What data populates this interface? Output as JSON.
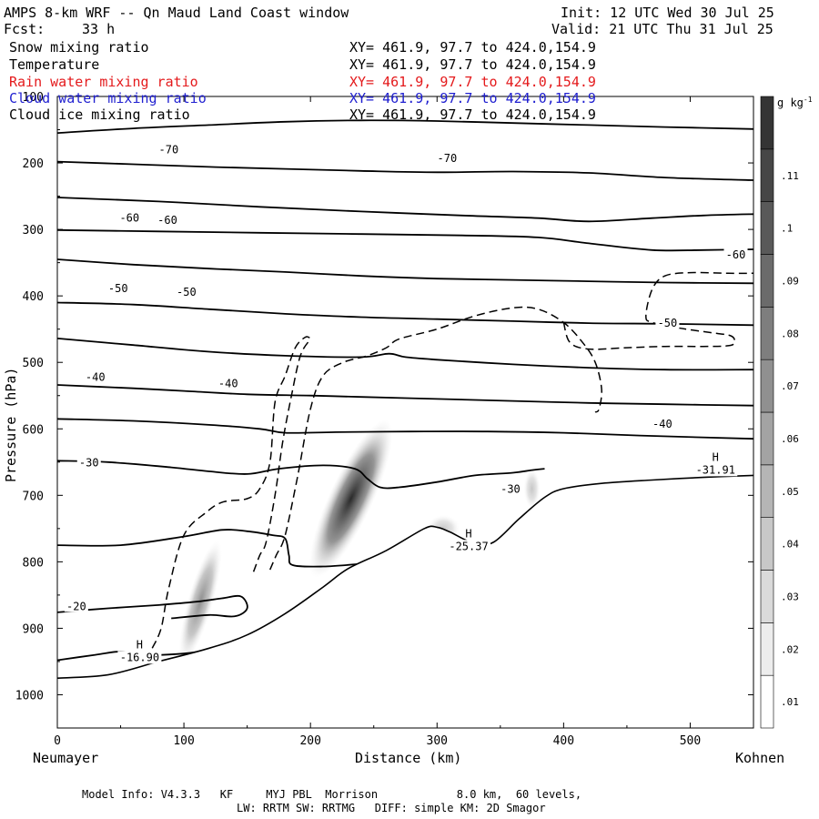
{
  "header": {
    "title": "AMPS 8-km WRF -- Qn Maud Land Coast window",
    "init": "Init: 12 UTC Wed 30 Jul 25",
    "fcst_label": "Fcst:",
    "fcst_value": "33 h",
    "valid": "Valid: 21 UTC Thu 31 Jul 25"
  },
  "legend": [
    {
      "name": "Snow mixing ratio",
      "xy": "XY= 461.9, 97.7 to 424.0,154.9",
      "color": "#000000"
    },
    {
      "name": "Temperature",
      "xy": "XY= 461.9, 97.7 to 424.0,154.9",
      "color": "#000000"
    },
    {
      "name": "Rain water mixing ratio",
      "xy": "XY= 461.9, 97.7 to 424.0,154.9",
      "color": "#e41a1c"
    },
    {
      "name": "Cloud water mixing ratio",
      "xy": "XY= 461.9, 97.7 to 424.0,154.9",
      "color": "#1f1fd0"
    },
    {
      "name": "Cloud ice mixing ratio",
      "xy": "XY= 461.9, 97.7 to 424.0,154.9",
      "color": "#000000"
    }
  ],
  "footer": {
    "line1": "Model Info: V4.3.3   KF     MYJ PBL  Morrison            8.0 km,  60 levels,",
    "line2": "LW: RRTM SW: RRTMG   DIFF: simple KM: 2D Smagor"
  },
  "chart_data": {
    "type": "contour",
    "xlabel": "Distance (km)",
    "ylabel": "Pressure (hPa)",
    "x_left_label": "Neumayer",
    "x_right_label": "Kohnen",
    "xlim": [
      0,
      550
    ],
    "ylim": [
      1050,
      100
    ],
    "x_ticks": [
      0,
      100,
      200,
      300,
      400,
      500
    ],
    "y_ticks": [
      100,
      200,
      300,
      400,
      500,
      600,
      700,
      800,
      900,
      1000
    ],
    "colorbar": {
      "unit": "g kg",
      "unit_exp": "-1",
      "ticks": [
        ".01",
        ".02",
        ".03",
        ".04",
        ".05",
        ".06",
        ".07",
        ".08",
        ".09",
        ".1",
        ".11"
      ]
    },
    "temperature_isotherms": [
      {
        "value": -70,
        "points": [
          [
            0,
            155
          ],
          [
            60,
            148
          ],
          [
            120,
            143
          ],
          [
            180,
            138
          ],
          [
            240,
            136
          ],
          [
            300,
            137
          ],
          [
            360,
            140
          ],
          [
            420,
            143
          ],
          [
            480,
            146
          ],
          [
            550,
            149
          ]
        ]
      },
      {
        "value": -70,
        "points": [
          [
            0,
            198
          ],
          [
            60,
            202
          ],
          [
            120,
            206
          ],
          [
            180,
            209
          ],
          [
            240,
            212
          ],
          [
            300,
            214
          ],
          [
            360,
            213
          ],
          [
            420,
            215
          ],
          [
            480,
            222
          ],
          [
            550,
            226
          ]
        ]
      },
      {
        "value": -70,
        "points": [
          [
            0,
            252
          ],
          [
            80,
            258
          ],
          [
            160,
            266
          ],
          [
            240,
            273
          ],
          [
            320,
            279
          ],
          [
            380,
            283
          ],
          [
            420,
            288
          ],
          [
            470,
            283
          ],
          [
            510,
            279
          ],
          [
            550,
            277
          ]
        ]
      },
      {
        "value": -60,
        "points": [
          [
            0,
            301
          ],
          [
            80,
            303
          ],
          [
            160,
            305
          ],
          [
            240,
            307
          ],
          [
            320,
            309
          ],
          [
            380,
            312
          ],
          [
            420,
            321
          ],
          [
            470,
            331
          ],
          [
            510,
            331
          ],
          [
            550,
            330
          ]
        ]
      },
      {
        "value": -60,
        "points": [
          [
            0,
            345
          ],
          [
            60,
            353
          ],
          [
            120,
            359
          ],
          [
            180,
            364
          ],
          [
            240,
            370
          ],
          [
            300,
            374
          ],
          [
            360,
            376
          ],
          [
            420,
            378
          ],
          [
            480,
            380
          ],
          [
            550,
            381
          ]
        ]
      },
      {
        "value": -50,
        "points": [
          [
            0,
            410
          ],
          [
            60,
            413
          ],
          [
            120,
            420
          ],
          [
            180,
            427
          ],
          [
            240,
            432
          ],
          [
            300,
            435
          ],
          [
            360,
            438
          ],
          [
            420,
            441
          ],
          [
            480,
            442
          ],
          [
            550,
            444
          ]
        ]
      },
      {
        "value": -40,
        "points": [
          [
            0,
            464
          ],
          [
            60,
            474
          ],
          [
            120,
            484
          ],
          [
            180,
            490
          ],
          [
            240,
            492
          ],
          [
            262,
            487
          ],
          [
            275,
            492
          ],
          [
            300,
            496
          ],
          [
            360,
            503
          ],
          [
            420,
            508
          ],
          [
            480,
            511
          ],
          [
            550,
            511
          ]
        ]
      },
      {
        "value": -40,
        "points": [
          [
            0,
            534
          ],
          [
            60,
            539
          ],
          [
            100,
            543
          ],
          [
            150,
            548
          ],
          [
            200,
            550
          ],
          [
            240,
            552
          ],
          [
            300,
            555
          ],
          [
            360,
            558
          ],
          [
            420,
            561
          ],
          [
            480,
            563
          ],
          [
            550,
            565
          ]
        ]
      },
      {
        "value": -30,
        "points": [
          [
            0,
            585
          ],
          [
            60,
            588
          ],
          [
            120,
            594
          ],
          [
            160,
            600
          ],
          [
            180,
            606
          ],
          [
            220,
            605
          ],
          [
            280,
            604
          ],
          [
            340,
            604
          ],
          [
            400,
            606
          ],
          [
            460,
            610
          ],
          [
            550,
            615
          ]
        ]
      },
      {
        "value": -30,
        "points": [
          [
            0,
            648
          ],
          [
            40,
            650
          ],
          [
            90,
            658
          ],
          [
            120,
            664
          ],
          [
            150,
            668
          ],
          [
            175,
            660
          ],
          [
            210,
            655
          ],
          [
            235,
            660
          ],
          [
            245,
            675
          ],
          [
            255,
            688
          ],
          [
            270,
            688
          ],
          [
            300,
            680
          ],
          [
            330,
            670
          ],
          [
            360,
            666
          ],
          [
            375,
            662
          ],
          [
            385,
            660
          ]
        ]
      },
      {
        "value": -20,
        "points": [
          [
            0,
            775
          ],
          [
            50,
            775
          ],
          [
            100,
            762
          ],
          [
            130,
            752
          ],
          [
            150,
            754
          ],
          [
            170,
            760
          ],
          [
            180,
            765
          ],
          [
            183,
            790
          ],
          [
            186,
            805
          ],
          [
            210,
            807
          ],
          [
            240,
            803
          ],
          [
            270,
            797
          ],
          [
            280,
            790
          ]
        ]
      },
      {
        "value": -20,
        "points": [
          [
            0,
            876
          ],
          [
            40,
            870
          ],
          [
            80,
            865
          ],
          [
            110,
            860
          ],
          [
            130,
            855
          ],
          [
            145,
            852
          ],
          [
            150,
            870
          ],
          [
            140,
            882
          ],
          [
            120,
            880
          ],
          [
            90,
            885
          ]
        ]
      },
      {
        "value": -20,
        "points": [
          [
            0,
            948
          ],
          [
            30,
            940
          ],
          [
            50,
            935
          ],
          [
            70,
            940
          ],
          [
            100,
            938
          ],
          [
            120,
            932
          ],
          [
            140,
            920
          ]
        ]
      }
    ],
    "isotherm_labels": [
      {
        "text": "-70",
        "x": 88,
        "p": 180
      },
      {
        "text": "-70",
        "x": 308,
        "p": 193
      },
      {
        "text": "-60",
        "x": 57,
        "p": 283
      },
      {
        "text": "-60",
        "x": 87,
        "p": 286
      },
      {
        "text": "-60",
        "x": 536,
        "p": 338
      },
      {
        "text": "-50",
        "x": 48,
        "p": 389
      },
      {
        "text": "-50",
        "x": 102,
        "p": 394
      },
      {
        "text": "-50",
        "x": 482,
        "p": 441
      },
      {
        "text": "-40",
        "x": 30,
        "p": 522
      },
      {
        "text": "-40",
        "x": 135,
        "p": 532
      },
      {
        "text": "-40",
        "x": 478,
        "p": 593
      },
      {
        "text": "-30",
        "x": 25,
        "p": 651
      },
      {
        "text": "-30",
        "x": 358,
        "p": 691
      },
      {
        "text": "-20",
        "x": 15,
        "p": 867
      }
    ],
    "highs": [
      {
        "label": "H",
        "value": "-16.90",
        "x": 65,
        "p": 930
      },
      {
        "label": "H",
        "value": "-25.37",
        "x": 325,
        "p": 763
      },
      {
        "label": "H",
        "value": "-31.91",
        "x": 520,
        "p": 648
      }
    ],
    "terrain_points": [
      [
        0,
        975
      ],
      [
        40,
        970
      ],
      [
        80,
        950
      ],
      [
        120,
        930
      ],
      [
        150,
        910
      ],
      [
        180,
        878
      ],
      [
        210,
        838
      ],
      [
        230,
        810
      ],
      [
        260,
        783
      ],
      [
        290,
        750
      ],
      [
        300,
        748
      ],
      [
        310,
        755
      ],
      [
        330,
        773
      ],
      [
        345,
        770
      ],
      [
        365,
        735
      ],
      [
        385,
        703
      ],
      [
        400,
        690
      ],
      [
        430,
        682
      ],
      [
        470,
        677
      ],
      [
        510,
        673
      ],
      [
        550,
        670
      ]
    ],
    "snow_dashed_contours": [
      {
        "points": [
          [
            75,
            930
          ],
          [
            82,
            900
          ],
          [
            88,
            840
          ],
          [
            100,
            760
          ],
          [
            118,
            725
          ],
          [
            131,
            710
          ],
          [
            150,
            705
          ],
          [
            160,
            690
          ],
          [
            168,
            650
          ],
          [
            172,
            560
          ],
          [
            180,
            520
          ],
          [
            188,
            478
          ],
          [
            196,
            462
          ],
          [
            200,
            464
          ]
        ]
      },
      {
        "points": [
          [
            155,
            815
          ],
          [
            160,
            790
          ],
          [
            165,
            770
          ],
          [
            172,
            700
          ],
          [
            178,
            620
          ],
          [
            185,
            550
          ],
          [
            192,
            490
          ],
          [
            200,
            465
          ]
        ]
      },
      {
        "points": [
          [
            168,
            812
          ],
          [
            173,
            790
          ],
          [
            180,
            760
          ],
          [
            190,
            670
          ],
          [
            200,
            570
          ],
          [
            210,
            520
          ],
          [
            226,
            500
          ],
          [
            245,
            490
          ],
          [
            260,
            478
          ],
          [
            270,
            465
          ],
          [
            300,
            450
          ],
          [
            330,
            430
          ],
          [
            360,
            418
          ],
          [
            380,
            420
          ],
          [
            400,
            440
          ],
          [
            415,
            470
          ],
          [
            425,
            500
          ],
          [
            430,
            540
          ],
          [
            428,
            570
          ],
          [
            425,
            575
          ]
        ]
      },
      {
        "points": [
          [
            400,
            440
          ],
          [
            405,
            470
          ],
          [
            420,
            480
          ],
          [
            450,
            478
          ],
          [
            480,
            476
          ],
          [
            510,
            476
          ],
          [
            530,
            475
          ],
          [
            535,
            470
          ],
          [
            532,
            460
          ],
          [
            515,
            455
          ],
          [
            490,
            448
          ],
          [
            470,
            440
          ],
          [
            465,
            430
          ],
          [
            470,
            390
          ],
          [
            480,
            370
          ],
          [
            500,
            365
          ],
          [
            530,
            366
          ],
          [
            550,
            366
          ]
        ]
      }
    ],
    "snow_shading": [
      {
        "x": 113,
        "p": 860,
        "sx": 14,
        "sp": 70,
        "rot": 16,
        "peak": 0.5
      },
      {
        "x": 232,
        "p": 705,
        "sx": 24,
        "sp": 95,
        "rot": 25,
        "peak": 0.95
      },
      {
        "x": 305,
        "p": 750,
        "sx": 18,
        "sp": 15,
        "rot": 0,
        "peak": 0.25
      },
      {
        "x": 375,
        "p": 690,
        "sx": 9,
        "sp": 22,
        "rot": 0,
        "peak": 0.25
      }
    ]
  }
}
